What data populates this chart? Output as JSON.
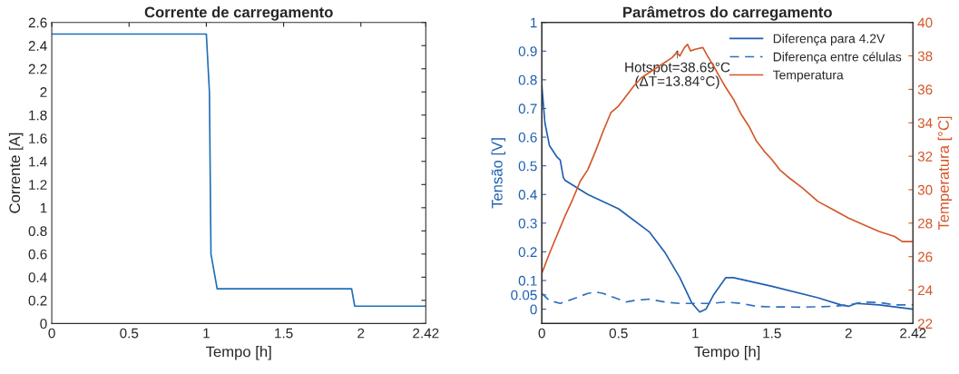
{
  "chart_data": [
    {
      "type": "line",
      "title": "Corrente de carregamento",
      "xlabel": "Tempo [h]",
      "ylabel": "Corrente [A]",
      "xlim": [
        0,
        2.42
      ],
      "xticks": [
        0,
        0.5,
        1,
        1.5,
        2,
        2.42
      ],
      "ylim": [
        0,
        2.6
      ],
      "yticks": [
        0,
        0.2,
        0.4,
        0.6,
        0.8,
        1,
        1.2,
        1.4,
        1.6,
        1.8,
        2,
        2.2,
        2.4,
        2.6
      ],
      "grid": false,
      "legend": false,
      "series": [
        {
          "color": "#1f6fb8",
          "x": [
            0,
            1.0,
            1.02,
            1.03,
            1.07,
            1.94,
            1.96,
            2.42
          ],
          "values": [
            2.5,
            2.5,
            2.0,
            0.6,
            0.3,
            0.3,
            0.15,
            0.15
          ]
        }
      ]
    },
    {
      "type": "line",
      "title": "Parâmetros do carregamento",
      "xlabel": "Tempo [h]",
      "ylabel": "Tensão [V]",
      "y2label": "Temperatura [°C]",
      "xlim": [
        0,
        2.42
      ],
      "xticks": [
        0,
        0.5,
        1,
        1.5,
        2,
        2.42
      ],
      "ylim": [
        -0.05,
        1
      ],
      "yticks": [
        0,
        0.05,
        0.1,
        0.2,
        0.3,
        0.4,
        0.5,
        0.6,
        0.7,
        0.8,
        0.9,
        1
      ],
      "y2lim": [
        22,
        40
      ],
      "y2ticks": [
        22,
        24,
        26,
        28,
        30,
        32,
        34,
        36,
        38,
        40
      ],
      "grid": false,
      "legend": "top right",
      "annotations": [
        "↑\nHotspot=38.69°C\n(ΔT=13.84°C)"
      ],
      "series": [
        {
          "name": "Diferença para 4.2V",
          "color": "#1f5fb0",
          "line_style": "solid",
          "x": [
            0,
            0.02,
            0.05,
            0.1,
            0.12,
            0.14,
            0.15,
            0.3,
            0.5,
            0.7,
            0.8,
            0.9,
            0.98,
            1.03,
            1.07,
            1.12,
            1.2,
            1.25,
            1.5,
            1.8,
            1.95,
            2.0,
            2.05,
            2.2,
            2.42
          ],
          "values": [
            0.78,
            0.65,
            0.57,
            0.53,
            0.52,
            0.46,
            0.45,
            0.4,
            0.35,
            0.27,
            0.2,
            0.11,
            0.02,
            -0.01,
            0.0,
            0.05,
            0.11,
            0.11,
            0.08,
            0.04,
            0.015,
            0.01,
            0.02,
            0.015,
            0.0
          ]
        },
        {
          "name": "Diferença entre células",
          "color": "#2f6fbf",
          "line_style": "dashed",
          "x": [
            0,
            0.05,
            0.12,
            0.2,
            0.3,
            0.35,
            0.4,
            0.5,
            0.55,
            0.6,
            0.7,
            0.8,
            0.9,
            1.0,
            1.1,
            1.2,
            1.3,
            1.4,
            1.5,
            1.7,
            1.9,
            2.0,
            2.05,
            2.1,
            2.2,
            2.3,
            2.42
          ],
          "values": [
            0.055,
            0.03,
            0.02,
            0.035,
            0.055,
            0.06,
            0.055,
            0.035,
            0.025,
            0.03,
            0.035,
            0.025,
            0.02,
            0.02,
            0.02,
            0.025,
            0.02,
            0.01,
            0.008,
            0.007,
            0.01,
            0.015,
            0.02,
            0.025,
            0.023,
            0.015,
            0.015
          ]
        },
        {
          "name": "Temperatura",
          "color": "#d4572a",
          "line_style": "solid",
          "axis": "y2",
          "x": [
            0,
            0.05,
            0.1,
            0.15,
            0.2,
            0.25,
            0.3,
            0.35,
            0.4,
            0.45,
            0.5,
            0.55,
            0.6,
            0.65,
            0.7,
            0.75,
            0.8,
            0.85,
            0.88,
            0.9,
            0.93,
            0.95,
            0.97,
            1.0,
            1.05,
            1.08,
            1.12,
            1.15,
            1.2,
            1.25,
            1.3,
            1.35,
            1.4,
            1.45,
            1.5,
            1.55,
            1.6,
            1.7,
            1.8,
            1.9,
            2.0,
            2.1,
            2.2,
            2.3,
            2.35,
            2.42
          ],
          "values": [
            25.0,
            26.2,
            27.3,
            28.4,
            29.4,
            30.5,
            31.2,
            32.3,
            33.5,
            34.6,
            35.0,
            35.6,
            36.2,
            36.7,
            37.0,
            37.3,
            37.6,
            37.9,
            38.2,
            38.0,
            38.5,
            38.69,
            38.3,
            38.4,
            38.5,
            38.0,
            37.4,
            36.9,
            36.1,
            35.4,
            34.5,
            33.8,
            32.9,
            32.3,
            31.8,
            31.2,
            30.8,
            30.1,
            29.3,
            28.8,
            28.3,
            27.9,
            27.5,
            27.2,
            26.9,
            26.9
          ]
        }
      ]
    }
  ]
}
